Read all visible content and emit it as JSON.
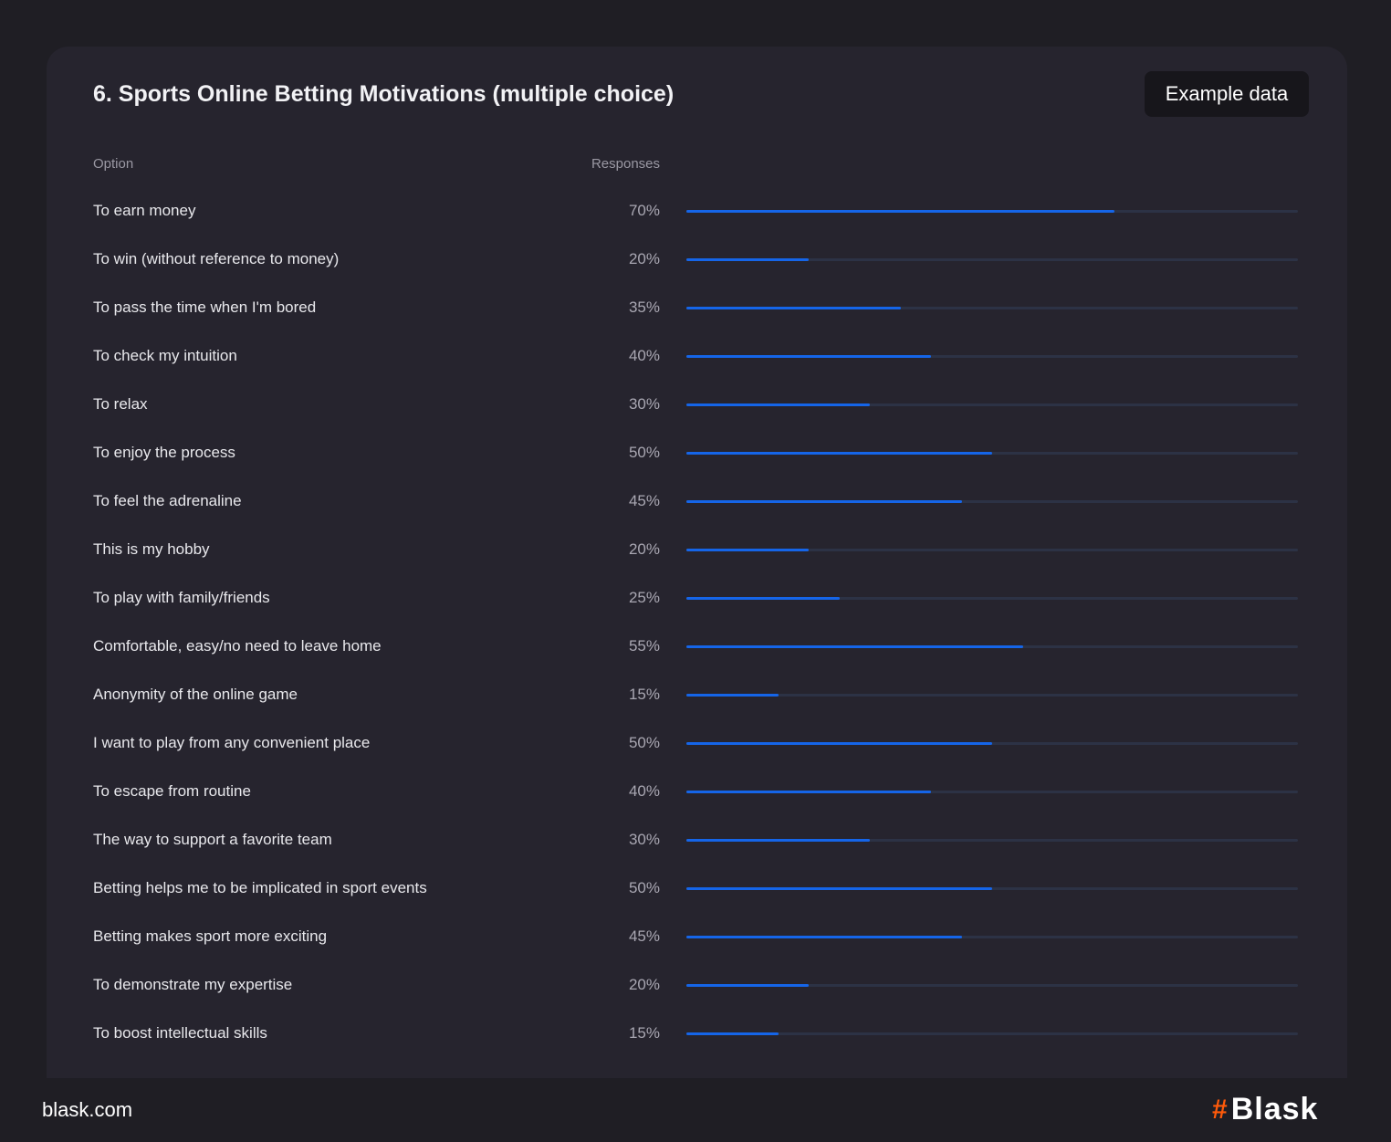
{
  "chart_data": {
    "type": "bar",
    "title": "6. Sports Online Betting Motivations (multiple choice)",
    "badge": "Example data",
    "column_option": "Option",
    "column_responses": "Responses",
    "xlim": [
      0,
      100
    ],
    "categories": [
      "To earn money",
      "To win (without reference to money)",
      "To pass the time when I'm bored",
      "To check my intuition",
      "To relax",
      "To enjoy the process",
      "To feel the adrenaline",
      "This is my hobby",
      "To play with family/friends",
      "Comfortable, easy/no need to leave home",
      "Anonymity of the online game",
      "I want to play from any convenient place",
      "To escape from routine",
      "The way to support a favorite team",
      "Betting helps me to be implicated in sport events",
      "Betting makes sport more exciting",
      "To demonstrate my expertise",
      "To boost intellectual skills"
    ],
    "values": [
      70,
      20,
      35,
      40,
      30,
      50,
      45,
      20,
      25,
      55,
      15,
      50,
      40,
      30,
      50,
      45,
      20,
      15
    ],
    "colors": {
      "fill": "#1565e8",
      "track": "#2c3245"
    }
  },
  "footer": {
    "site": "blask.com",
    "brand": "Blask",
    "brand_mark": "#"
  }
}
